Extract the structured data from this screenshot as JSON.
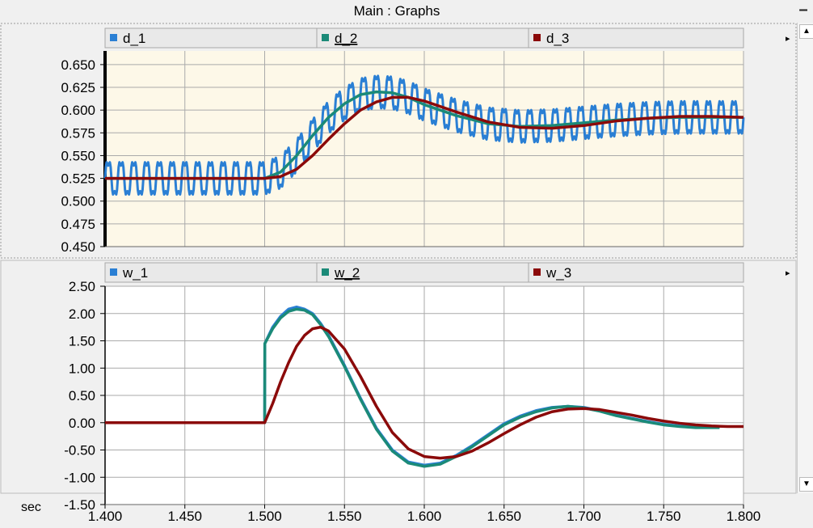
{
  "window": {
    "title": "Main : Graphs",
    "minimize_label": "–"
  },
  "axis": {
    "unit_label": "sec"
  },
  "chart_data": [
    {
      "type": "line",
      "xlim": [
        1.4,
        1.8
      ],
      "ylim": [
        0.45,
        0.665
      ],
      "yticks": [
        "0.650",
        "0.625",
        "0.600",
        "0.575",
        "0.550",
        "0.525",
        "0.500",
        "0.475",
        "0.450"
      ],
      "ytick_values": [
        0.65,
        0.625,
        0.6,
        0.575,
        0.55,
        0.525,
        0.5,
        0.475,
        0.45
      ],
      "grid": true,
      "background": "#fdf8e8",
      "series": [
        {
          "name": "d_1",
          "color": "#2a7fd4",
          "x": [
            1.4,
            1.425,
            1.45,
            1.475,
            1.5,
            1.51,
            1.52,
            1.53,
            1.54,
            1.55,
            1.56,
            1.57,
            1.58,
            1.59,
            1.6,
            1.62,
            1.64,
            1.66,
            1.68,
            1.7,
            1.72,
            1.74,
            1.76,
            1.78,
            1.8
          ],
          "y": [
            0.525,
            0.525,
            0.525,
            0.525,
            0.525,
            0.532,
            0.55,
            0.572,
            0.592,
            0.607,
            0.617,
            0.62,
            0.619,
            0.614,
            0.606,
            0.594,
            0.585,
            0.582,
            0.583,
            0.586,
            0.589,
            0.591,
            0.592,
            0.592,
            0.592
          ],
          "ripple_amplitude": 0.025,
          "ripple_period": 0.008
        },
        {
          "name": "d_2",
          "color": "#1b8a78",
          "x": [
            1.4,
            1.425,
            1.45,
            1.475,
            1.5,
            1.51,
            1.52,
            1.53,
            1.54,
            1.55,
            1.56,
            1.57,
            1.58,
            1.59,
            1.6,
            1.62,
            1.64,
            1.66,
            1.68,
            1.7,
            1.72,
            1.74,
            1.76,
            1.78,
            1.8
          ],
          "y": [
            0.525,
            0.525,
            0.525,
            0.525,
            0.525,
            0.532,
            0.55,
            0.572,
            0.592,
            0.607,
            0.617,
            0.62,
            0.619,
            0.614,
            0.606,
            0.594,
            0.585,
            0.582,
            0.583,
            0.586,
            0.589,
            0.591,
            0.592,
            0.592,
            0.592
          ]
        },
        {
          "name": "d_3",
          "color": "#8b0a0a",
          "x": [
            1.4,
            1.425,
            1.45,
            1.475,
            1.5,
            1.51,
            1.52,
            1.53,
            1.54,
            1.55,
            1.56,
            1.57,
            1.58,
            1.59,
            1.6,
            1.62,
            1.64,
            1.66,
            1.68,
            1.7,
            1.72,
            1.74,
            1.76,
            1.78,
            1.8
          ],
          "y": [
            0.525,
            0.525,
            0.525,
            0.525,
            0.525,
            0.527,
            0.535,
            0.55,
            0.568,
            0.585,
            0.6,
            0.609,
            0.614,
            0.614,
            0.61,
            0.598,
            0.587,
            0.581,
            0.58,
            0.583,
            0.588,
            0.591,
            0.593,
            0.593,
            0.592
          ]
        }
      ]
    },
    {
      "type": "line",
      "xlim": [
        1.4,
        1.8
      ],
      "ylim": [
        -1.5,
        2.5
      ],
      "yticks": [
        "2.50",
        "2.00",
        "1.50",
        "1.00",
        "0.50",
        "0.00",
        "-0.50",
        "-1.00",
        "-1.50"
      ],
      "ytick_values": [
        2.5,
        2,
        1.5,
        1,
        0.5,
        0,
        -0.5,
        -1,
        -1.5
      ],
      "xticks": [
        "1.400",
        "1.450",
        "1.500",
        "1.550",
        "1.600",
        "1.650",
        "1.700",
        "1.750",
        "1.800"
      ],
      "xtick_values": [
        1.4,
        1.45,
        1.5,
        1.55,
        1.6,
        1.65,
        1.7,
        1.75,
        1.8
      ],
      "grid": true,
      "background": "#ffffff",
      "series": [
        {
          "name": "w_1",
          "color": "#2a7fd4",
          "x": [
            1.4,
            1.45,
            1.5,
            1.5001,
            1.505,
            1.51,
            1.515,
            1.52,
            1.525,
            1.53,
            1.535,
            1.54,
            1.55,
            1.56,
            1.57,
            1.58,
            1.59,
            1.6,
            1.61,
            1.62,
            1.63,
            1.64,
            1.65,
            1.66,
            1.67,
            1.68,
            1.69,
            1.7,
            1.71,
            1.72,
            1.73,
            1.74,
            1.75,
            1.76,
            1.77,
            1.785
          ],
          "y": [
            0,
            0,
            0,
            1.45,
            1.75,
            1.95,
            2.08,
            2.12,
            2.08,
            2.0,
            1.82,
            1.6,
            1.05,
            0.45,
            -0.1,
            -0.5,
            -0.72,
            -0.78,
            -0.74,
            -0.6,
            -0.42,
            -0.22,
            -0.02,
            0.12,
            0.22,
            0.28,
            0.3,
            0.28,
            0.22,
            0.14,
            0.08,
            0.02,
            -0.03,
            -0.06,
            -0.08,
            -0.08
          ]
        },
        {
          "name": "w_2",
          "color": "#1b8a78",
          "x": [
            1.4,
            1.45,
            1.5,
            1.5001,
            1.505,
            1.51,
            1.515,
            1.52,
            1.525,
            1.53,
            1.535,
            1.54,
            1.55,
            1.56,
            1.57,
            1.58,
            1.59,
            1.6,
            1.61,
            1.62,
            1.63,
            1.64,
            1.65,
            1.66,
            1.67,
            1.68,
            1.69,
            1.7,
            1.71,
            1.72,
            1.73,
            1.74,
            1.75,
            1.76,
            1.77,
            1.785
          ],
          "y": [
            0,
            0,
            0,
            1.45,
            1.72,
            1.92,
            2.04,
            2.08,
            2.06,
            1.98,
            1.8,
            1.58,
            1.03,
            0.43,
            -0.12,
            -0.52,
            -0.74,
            -0.8,
            -0.76,
            -0.62,
            -0.44,
            -0.24,
            -0.04,
            0.1,
            0.2,
            0.27,
            0.3,
            0.27,
            0.21,
            0.13,
            0.07,
            0.01,
            -0.04,
            -0.07,
            -0.09,
            -0.09
          ]
        },
        {
          "name": "w_3",
          "color": "#8b0a0a",
          "x": [
            1.4,
            1.45,
            1.5,
            1.505,
            1.51,
            1.515,
            1.52,
            1.525,
            1.53,
            1.535,
            1.54,
            1.55,
            1.56,
            1.57,
            1.58,
            1.59,
            1.6,
            1.61,
            1.62,
            1.63,
            1.64,
            1.65,
            1.66,
            1.67,
            1.68,
            1.69,
            1.7,
            1.71,
            1.72,
            1.73,
            1.74,
            1.75,
            1.76,
            1.77,
            1.78,
            1.79,
            1.8
          ],
          "y": [
            0,
            0,
            0,
            0.35,
            0.75,
            1.1,
            1.4,
            1.6,
            1.72,
            1.75,
            1.68,
            1.35,
            0.85,
            0.3,
            -0.18,
            -0.48,
            -0.62,
            -0.65,
            -0.62,
            -0.52,
            -0.37,
            -0.2,
            -0.04,
            0.1,
            0.2,
            0.25,
            0.26,
            0.24,
            0.19,
            0.14,
            0.08,
            0.03,
            -0.01,
            -0.04,
            -0.06,
            -0.07,
            -0.07
          ]
        }
      ]
    }
  ]
}
